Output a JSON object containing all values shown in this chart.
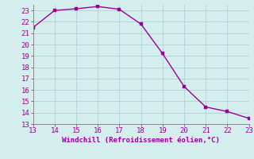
{
  "x": [
    13,
    14,
    15,
    16,
    17,
    18,
    19,
    20,
    21,
    22,
    23
  ],
  "y": [
    21.5,
    23.0,
    23.15,
    23.35,
    23.1,
    21.8,
    19.2,
    16.3,
    14.5,
    14.1,
    13.5
  ],
  "xlim": [
    13,
    23
  ],
  "ylim": [
    13,
    23.5
  ],
  "xticks": [
    13,
    14,
    15,
    16,
    17,
    18,
    19,
    20,
    21,
    22,
    23
  ],
  "yticks": [
    13,
    14,
    15,
    16,
    17,
    18,
    19,
    20,
    21,
    22,
    23
  ],
  "xlabel": "Windchill (Refroidissement éolien,°C)",
  "line_color": "#990099",
  "marker_color": "#990099",
  "bg_color": "#d4eeee",
  "grid_color": "#aacccc",
  "tick_color": "#990099",
  "label_color": "#990099",
  "font_size_label": 6.5,
  "font_size_tick": 6.5,
  "marker_size": 2.5,
  "line_width": 1.0
}
